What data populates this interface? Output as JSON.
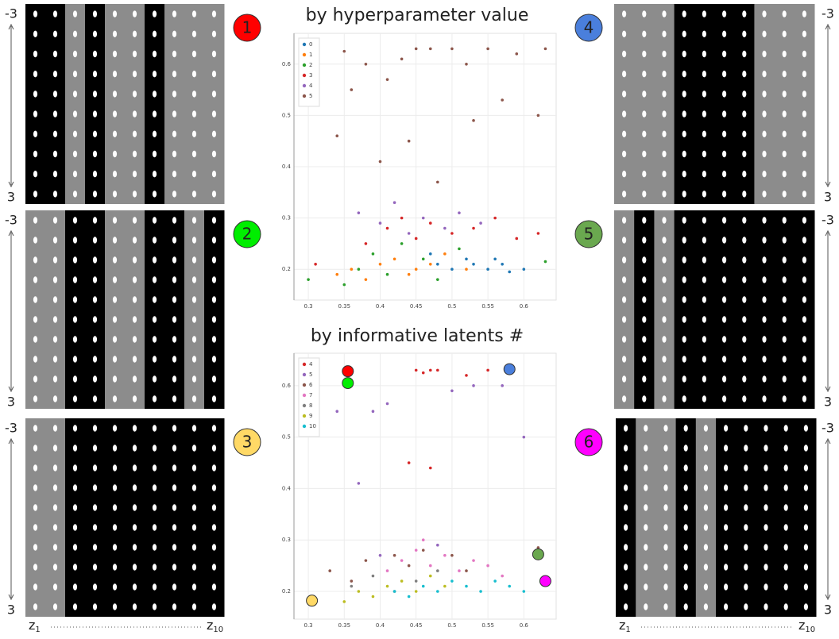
{
  "panels": [
    {
      "label": "1",
      "badge_color": "#ff0000",
      "scale_top": "-3",
      "scale_bottom": "3"
    },
    {
      "label": "2",
      "badge_color": "#00ee00",
      "scale_top": "-3",
      "scale_bottom": "3"
    },
    {
      "label": "3",
      "badge_color": "#ffd966",
      "scale_top": "-3",
      "scale_bottom": "3"
    },
    {
      "label": "4",
      "badge_color": "#4a7fdc",
      "scale_top": "-3",
      "scale_bottom": "3"
    },
    {
      "label": "5",
      "badge_color": "#6aa84f",
      "scale_top": "-3",
      "scale_bottom": "3"
    },
    {
      "label": "6",
      "badge_color": "#ff00ff",
      "scale_top": "-3",
      "scale_bottom": "3"
    }
  ],
  "latent_axis": {
    "first": {
      "base": "z",
      "sub": "1"
    },
    "last": {
      "base": "z",
      "sub": "10"
    }
  },
  "chart_data": [
    {
      "type": "scatter",
      "title": "by hyperparameter value",
      "xlim": [
        0.28,
        0.645
      ],
      "ylim": [
        0.14,
        0.66
      ],
      "xticks": [
        0.3,
        0.35,
        0.4,
        0.45,
        0.5,
        0.55,
        0.6
      ],
      "yticks": [
        0.2,
        0.3,
        0.4,
        0.5,
        0.6
      ],
      "grid": true,
      "legend": "upper left",
      "series": [
        {
          "name": "0",
          "color": "#1f77b4",
          "x": [
            0.48,
            0.5,
            0.52,
            0.53,
            0.55,
            0.56,
            0.57,
            0.58,
            0.6,
            0.47
          ],
          "values": [
            0.21,
            0.2,
            0.22,
            0.21,
            0.2,
            0.22,
            0.21,
            0.195,
            0.2,
            0.23
          ]
        },
        {
          "name": "1",
          "color": "#ff7f0e",
          "x": [
            0.34,
            0.36,
            0.38,
            0.4,
            0.42,
            0.44,
            0.45,
            0.47,
            0.49,
            0.52
          ],
          "values": [
            0.19,
            0.2,
            0.18,
            0.21,
            0.22,
            0.19,
            0.2,
            0.21,
            0.23,
            0.2
          ]
        },
        {
          "name": "2",
          "color": "#2ca02c",
          "x": [
            0.3,
            0.35,
            0.37,
            0.39,
            0.41,
            0.43,
            0.46,
            0.48,
            0.51,
            0.63
          ],
          "values": [
            0.18,
            0.17,
            0.2,
            0.23,
            0.19,
            0.25,
            0.22,
            0.18,
            0.24,
            0.215
          ]
        },
        {
          "name": "3",
          "color": "#d62728",
          "x": [
            0.31,
            0.38,
            0.41,
            0.43,
            0.45,
            0.47,
            0.5,
            0.53,
            0.56,
            0.59,
            0.62
          ],
          "values": [
            0.21,
            0.25,
            0.28,
            0.3,
            0.26,
            0.29,
            0.27,
            0.28,
            0.3,
            0.26,
            0.27
          ]
        },
        {
          "name": "4",
          "color": "#9467bd",
          "x": [
            0.37,
            0.4,
            0.42,
            0.44,
            0.46,
            0.49,
            0.51,
            0.54
          ],
          "values": [
            0.31,
            0.29,
            0.33,
            0.27,
            0.3,
            0.28,
            0.31,
            0.29
          ]
        },
        {
          "name": "5",
          "color": "#8c564b",
          "x": [
            0.34,
            0.35,
            0.38,
            0.41,
            0.43,
            0.45,
            0.47,
            0.5,
            0.52,
            0.55,
            0.57,
            0.59,
            0.62,
            0.63,
            0.4,
            0.44,
            0.48,
            0.36,
            0.53
          ],
          "values": [
            0.46,
            0.625,
            0.6,
            0.57,
            0.61,
            0.63,
            0.63,
            0.63,
            0.6,
            0.63,
            0.53,
            0.62,
            0.5,
            0.63,
            0.41,
            0.45,
            0.37,
            0.55,
            0.49
          ]
        }
      ]
    },
    {
      "type": "scatter",
      "title": "by informative latents #",
      "xlim": [
        0.28,
        0.645
      ],
      "ylim": [
        0.146,
        0.663
      ],
      "xticks": [
        0.3,
        0.35,
        0.4,
        0.45,
        0.5,
        0.55,
        0.6
      ],
      "yticks": [
        0.2,
        0.3,
        0.4,
        0.5,
        0.6
      ],
      "grid": true,
      "legend": "upper left",
      "series": [
        {
          "name": "4",
          "color": "#d62728",
          "x": [
            0.45,
            0.46,
            0.47,
            0.48,
            0.52,
            0.55,
            0.44,
            0.47
          ],
          "values": [
            0.63,
            0.625,
            0.63,
            0.63,
            0.62,
            0.63,
            0.45,
            0.44
          ]
        },
        {
          "name": "5",
          "color": "#9467bd",
          "x": [
            0.34,
            0.37,
            0.39,
            0.41,
            0.5,
            0.53,
            0.57,
            0.6,
            0.4,
            0.48
          ],
          "values": [
            0.55,
            0.41,
            0.55,
            0.565,
            0.59,
            0.6,
            0.6,
            0.5,
            0.27,
            0.29
          ]
        },
        {
          "name": "6",
          "color": "#8c564b",
          "x": [
            0.33,
            0.36,
            0.38,
            0.42,
            0.44,
            0.46,
            0.5,
            0.52,
            0.62
          ],
          "values": [
            0.24,
            0.22,
            0.26,
            0.27,
            0.25,
            0.28,
            0.27,
            0.24,
            0.285
          ]
        },
        {
          "name": "7",
          "color": "#e377c2",
          "x": [
            0.41,
            0.43,
            0.45,
            0.47,
            0.49,
            0.51,
            0.53,
            0.55,
            0.57,
            0.46
          ],
          "values": [
            0.24,
            0.26,
            0.28,
            0.25,
            0.27,
            0.24,
            0.26,
            0.25,
            0.23,
            0.3
          ]
        },
        {
          "name": "8",
          "color": "#7f7f7f",
          "x": [
            0.36,
            0.39,
            0.42,
            0.45,
            0.48
          ],
          "values": [
            0.21,
            0.23,
            0.2,
            0.22,
            0.24
          ]
        },
        {
          "name": "9",
          "color": "#bcbd22",
          "x": [
            0.35,
            0.37,
            0.39,
            0.41,
            0.43,
            0.45,
            0.47,
            0.49
          ],
          "values": [
            0.18,
            0.2,
            0.19,
            0.21,
            0.22,
            0.2,
            0.23,
            0.21
          ]
        },
        {
          "name": "10",
          "color": "#17becf",
          "x": [
            0.42,
            0.44,
            0.46,
            0.48,
            0.5,
            0.52,
            0.54,
            0.56,
            0.58,
            0.6
          ],
          "values": [
            0.2,
            0.19,
            0.21,
            0.2,
            0.22,
            0.21,
            0.2,
            0.22,
            0.21,
            0.2
          ]
        }
      ],
      "highlights": [
        {
          "color": "#ff0000",
          "x": 0.355,
          "y": 0.628
        },
        {
          "color": "#00ee00",
          "x": 0.355,
          "y": 0.605
        },
        {
          "color": "#ffd966",
          "x": 0.305,
          "y": 0.182
        },
        {
          "color": "#4a7fdc",
          "x": 0.58,
          "y": 0.632
        },
        {
          "color": "#6aa84f",
          "x": 0.62,
          "y": 0.272
        },
        {
          "color": "#ff00ff",
          "x": 0.63,
          "y": 0.22
        }
      ]
    }
  ]
}
